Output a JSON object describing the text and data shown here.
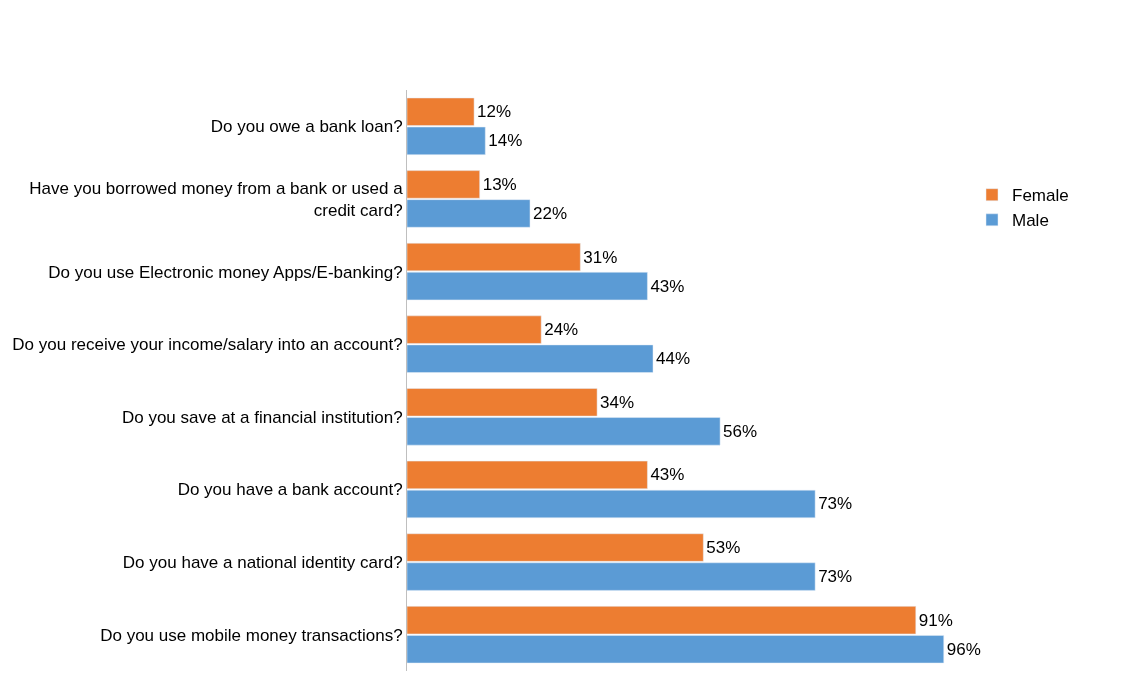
{
  "chart_data": {
    "type": "bar",
    "orientation": "horizontal",
    "categories": [
      "Do you owe a bank loan?",
      "Have you borrowed money from a bank or used a credit card?",
      "Do you use Electronic money Apps/E-banking?",
      "Do you receive your income/salary into an account?",
      "Do you save at a financial institution?",
      "Do you have a bank account?",
      "Do you have a national identity card?",
      "Do you use mobile money transactions?"
    ],
    "series": [
      {
        "name": "Female",
        "color": "#ed7d31",
        "values": [
          12,
          13,
          31,
          24,
          34,
          43,
          53,
          91
        ],
        "value_labels": [
          "12%",
          "13%",
          "31%",
          "24%",
          "34%",
          "43%",
          "53%",
          "91%"
        ]
      },
      {
        "name": "Male",
        "color": "#5b9bd5",
        "values": [
          14,
          22,
          43,
          44,
          56,
          73,
          73,
          96
        ],
        "value_labels": [
          "14%",
          "22%",
          "43%",
          "44%",
          "56%",
          "73%",
          "73%",
          "96%"
        ]
      }
    ],
    "legend": "right"
  }
}
